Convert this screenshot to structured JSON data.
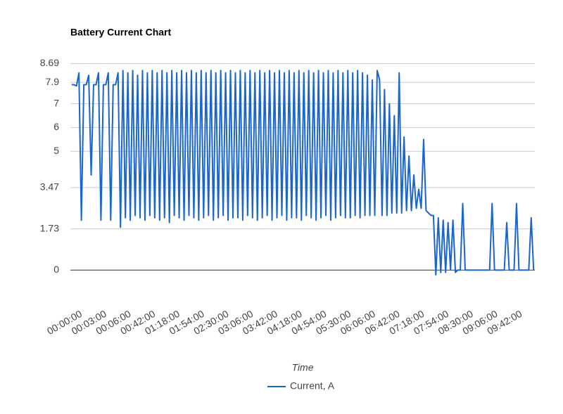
{
  "chart_data": {
    "type": "line",
    "title": "Battery Current Chart",
    "x_label": "Time",
    "categories": [
      "00:00:00",
      null,
      null,
      null,
      null,
      null,
      null,
      null,
      null,
      null,
      "00:03:00",
      null,
      null,
      null,
      null,
      null,
      null,
      null,
      null,
      null,
      "00:06:00",
      null,
      null,
      null,
      null,
      null,
      null,
      null,
      null,
      null,
      "00:42:00",
      null,
      null,
      null,
      null,
      null,
      null,
      null,
      null,
      null,
      "01:18:00",
      null,
      null,
      null,
      null,
      null,
      null,
      null,
      null,
      null,
      "01:54:00",
      null,
      null,
      null,
      null,
      null,
      null,
      null,
      null,
      null,
      "02:30:00",
      null,
      null,
      null,
      null,
      null,
      null,
      null,
      null,
      null,
      "03:06:00",
      null,
      null,
      null,
      null,
      null,
      null,
      null,
      null,
      null,
      "03:42:00",
      null,
      null,
      null,
      null,
      null,
      null,
      null,
      null,
      null,
      "04:18:00",
      null,
      null,
      null,
      null,
      null,
      null,
      null,
      null,
      null,
      "04:54:00",
      null,
      null,
      null,
      null,
      null,
      null,
      null,
      null,
      null,
      "05:30:00",
      null,
      null,
      null,
      null,
      null,
      null,
      null,
      null,
      null,
      "06:06:00",
      null,
      null,
      null,
      null,
      null,
      null,
      null,
      null,
      null,
      "06:42:00",
      null,
      null,
      null,
      null,
      null,
      null,
      null,
      null,
      null,
      "07:18:00",
      null,
      null,
      null,
      null,
      null,
      null,
      null,
      null,
      null,
      "07:54:00",
      null,
      null,
      null,
      null,
      null,
      null,
      null,
      null,
      null,
      "08:30:00",
      null,
      null,
      null,
      null,
      null,
      null,
      null,
      null,
      null,
      "09:06:00",
      null,
      null,
      null,
      null,
      null,
      null,
      null,
      null,
      null,
      "09:42:00",
      null,
      null,
      null,
      null,
      null,
      null,
      null,
      null,
      null
    ],
    "series": [
      {
        "name": "Current, A",
        "color": "#1a66cc",
        "values": [
          7.8,
          7.8,
          7.75,
          8.3,
          2.1,
          7.8,
          7.8,
          8.2,
          4.0,
          7.8,
          7.8,
          8.3,
          2.1,
          7.8,
          7.8,
          8.3,
          2.1,
          7.8,
          7.8,
          8.3,
          1.8,
          8.4,
          2.2,
          8.3,
          2.1,
          8.4,
          2.3,
          8.2,
          2.2,
          8.4,
          2.1,
          8.3,
          2.3,
          8.4,
          2.2,
          8.3,
          2.1,
          8.4,
          2.2,
          8.3,
          2.0,
          8.4,
          2.3,
          8.3,
          2.2,
          8.4,
          2.1,
          8.3,
          2.3,
          8.4,
          2.2,
          8.3,
          2.1,
          8.4,
          2.2,
          8.3,
          2.3,
          8.4,
          2.1,
          8.3,
          2.2,
          8.4,
          2.3,
          8.3,
          2.1,
          8.4,
          2.2,
          8.3,
          2.2,
          8.4,
          2.1,
          8.3,
          2.3,
          8.4,
          2.2,
          8.3,
          2.1,
          8.4,
          2.2,
          8.3,
          2.3,
          8.4,
          2.1,
          8.3,
          2.2,
          8.4,
          2.3,
          8.3,
          2.1,
          8.4,
          2.2,
          8.3,
          2.2,
          8.4,
          2.1,
          8.3,
          2.3,
          8.4,
          2.2,
          8.3,
          2.1,
          8.4,
          2.2,
          8.3,
          2.3,
          8.4,
          2.1,
          8.3,
          2.2,
          8.4,
          2.3,
          8.3,
          2.2,
          8.4,
          2.2,
          8.3,
          2.3,
          8.4,
          2.2,
          8.3,
          2.3,
          8.2,
          2.3,
          8.0,
          2.3,
          8.4,
          8.0,
          2.3,
          7.6,
          2.3,
          7.0,
          2.4,
          6.5,
          2.4,
          8.3,
          2.4,
          5.6,
          2.5,
          4.8,
          2.5,
          4.0,
          2.6,
          3.4,
          2.6,
          5.5,
          2.5,
          2.4,
          2.3,
          2.3,
          -0.2,
          2.2,
          -0.1,
          2.1,
          -0.1,
          2.0,
          0,
          2.1,
          -0.1,
          0,
          0,
          2.8,
          0,
          0,
          0,
          0,
          0,
          0,
          0,
          0,
          0,
          0,
          0,
          2.8,
          0,
          0,
          0,
          0,
          0,
          2.0,
          0,
          0,
          0,
          2.8,
          0,
          0,
          0,
          0,
          0,
          2.2,
          0
        ]
      }
    ],
    "ylim": [
      -1,
      9
    ],
    "yticks": [
      0,
      1.73,
      3.47,
      5,
      6,
      7,
      7.9,
      8.69
    ],
    "grid": true,
    "legend": "bottom"
  }
}
